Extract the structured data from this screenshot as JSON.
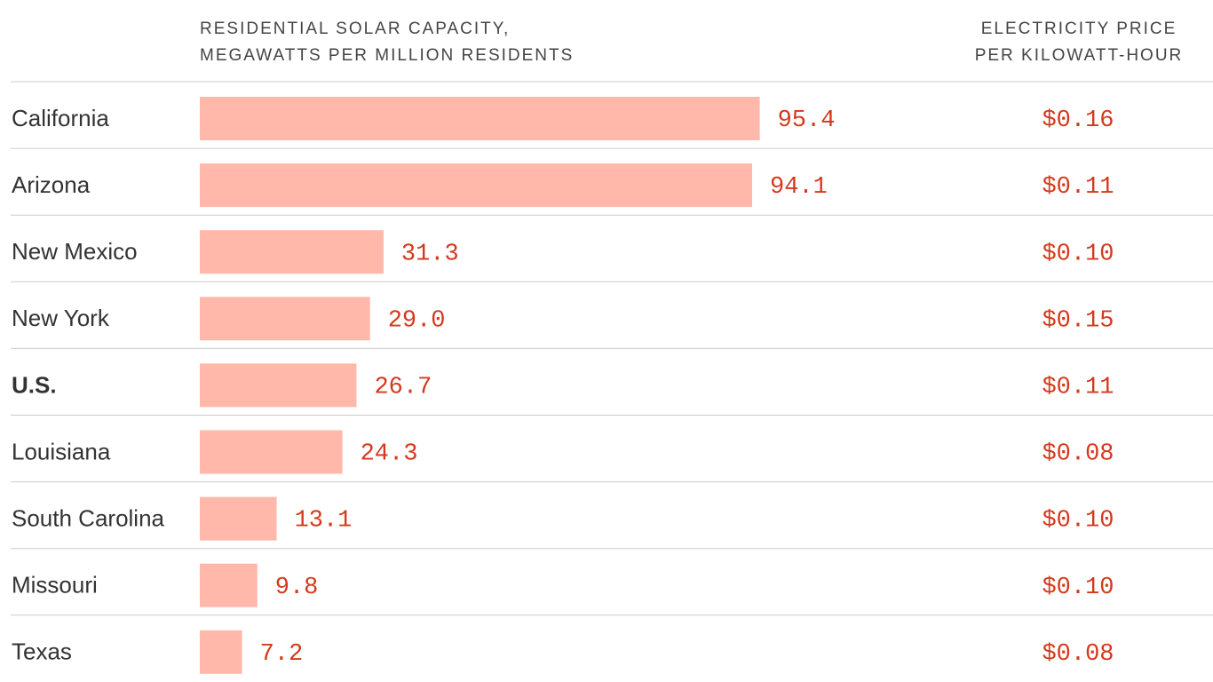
{
  "chart_data": {
    "type": "bar",
    "title": [
      "RESIDENTIAL SOLAR CAPACITY,",
      "MEGAWATTS PER MILLION RESIDENTS"
    ],
    "price_title": [
      "ELECTRICITY PRICE",
      "PER KILOWATT-HOUR"
    ],
    "categories": [
      "California",
      "Arizona",
      "New Mexico",
      "New York",
      "U.S.",
      "Louisiana",
      "South Carolina",
      "Missouri",
      "Texas"
    ],
    "bold_index": 4,
    "color": "#ffb8aa",
    "label_color": "#d4391c",
    "xlim": [
      0,
      100
    ],
    "series": [
      {
        "values": [
          95.4,
          94.1,
          31.3,
          29.0,
          26.7,
          24.3,
          13.1,
          9.8,
          7.2
        ],
        "value_labels": [
          "95.4",
          "94.1",
          "31.3",
          "29.0",
          "26.7",
          "24.3",
          "13.1",
          "9.8",
          "7.2"
        ]
      },
      {
        "values": [
          0.16,
          0.11,
          0.1,
          0.15,
          0.11,
          0.08,
          0.1,
          0.1,
          0.08
        ],
        "value_labels": [
          "$0.16",
          "$0.11",
          "$0.10",
          "$0.15",
          "$0.11",
          "$0.08",
          "$0.10",
          "$0.10",
          "$0.08"
        ]
      }
    ]
  }
}
